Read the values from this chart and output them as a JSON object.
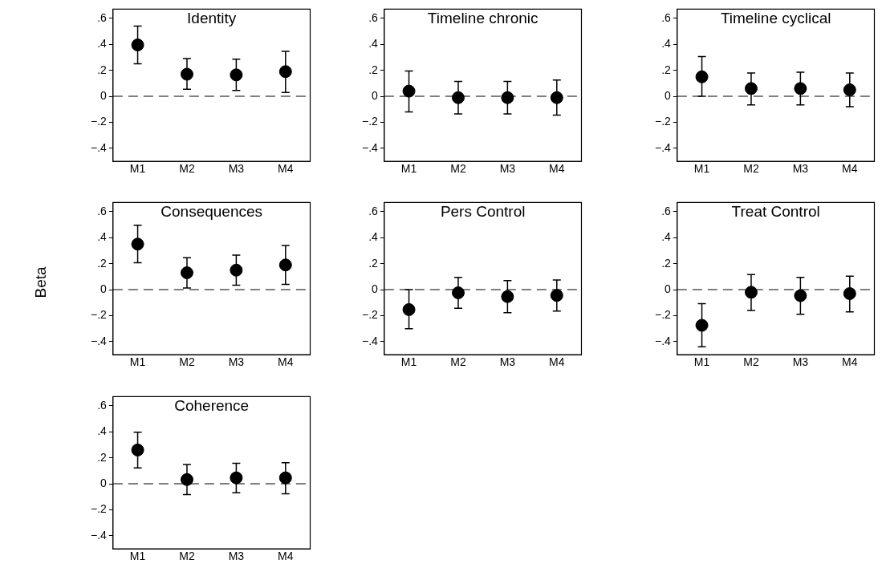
{
  "chart_data": [
    {
      "type": "scatter",
      "title": "Identity",
      "categories": [
        "M1",
        "M2",
        "M3",
        "M4"
      ],
      "series": [
        {
          "color": "#000000",
          "values": [
            0.395,
            0.17,
            0.165,
            0.19
          ],
          "errors": [
            [
              0.25,
              0.54
            ],
            [
              0.055,
              0.29
            ],
            [
              0.045,
              0.285
            ],
            [
              0.03,
              0.345
            ]
          ]
        }
      ],
      "marker": "circle",
      "ylim": [
        -0.5,
        0.67
      ],
      "yticks": [
        {
          "value": 0.6,
          "label": ".6"
        },
        {
          "value": 0.4,
          "label": ".4"
        },
        {
          "value": 0.2,
          "label": ".2"
        },
        {
          "value": 0,
          "label": "0"
        },
        {
          "value": -0.2,
          "label": "−.2"
        },
        {
          "value": -0.4,
          "label": "−.4"
        }
      ],
      "ref_lines": [
        {
          "axis": "y",
          "value": 0,
          "label": null,
          "color": "#555555",
          "line_style": "dashed"
        }
      ],
      "grid": false,
      "legend": false
    },
    {
      "type": "scatter",
      "title": "Timeline chronic",
      "categories": [
        "M1",
        "M2",
        "M3",
        "M4"
      ],
      "series": [
        {
          "color": "#000000",
          "values": [
            0.04,
            -0.01,
            -0.01,
            -0.01
          ],
          "errors": [
            [
              -0.12,
              0.195
            ],
            [
              -0.135,
              0.115
            ],
            [
              -0.135,
              0.115
            ],
            [
              -0.145,
              0.125
            ]
          ]
        }
      ],
      "marker": "circle",
      "ylim": [
        -0.5,
        0.67
      ],
      "yticks": [
        {
          "value": 0.6,
          "label": ".6"
        },
        {
          "value": 0.4,
          "label": ".4"
        },
        {
          "value": 0.2,
          "label": ".2"
        },
        {
          "value": 0,
          "label": "0"
        },
        {
          "value": -0.2,
          "label": "−.2"
        },
        {
          "value": -0.4,
          "label": "−.4"
        }
      ],
      "ref_lines": [
        {
          "axis": "y",
          "value": 0,
          "label": null,
          "color": "#555555",
          "line_style": "dashed"
        }
      ],
      "grid": false,
      "legend": false
    },
    {
      "type": "scatter",
      "title": "Timeline cyclical",
      "categories": [
        "M1",
        "M2",
        "M3",
        "M4"
      ],
      "series": [
        {
          "color": "#000000",
          "values": [
            0.15,
            0.06,
            0.06,
            0.05
          ],
          "errors": [
            [
              0,
              0.305
            ],
            [
              -0.065,
              0.18
            ],
            [
              -0.065,
              0.185
            ],
            [
              -0.08,
              0.18
            ]
          ]
        }
      ],
      "marker": "circle",
      "ylim": [
        -0.5,
        0.67
      ],
      "yticks": [
        {
          "value": 0.6,
          "label": ".6"
        },
        {
          "value": 0.4,
          "label": ".4"
        },
        {
          "value": 0.2,
          "label": ".2"
        },
        {
          "value": 0,
          "label": "0"
        },
        {
          "value": -0.2,
          "label": "−.2"
        },
        {
          "value": -0.4,
          "label": "−.4"
        }
      ],
      "ref_lines": [
        {
          "axis": "y",
          "value": 0,
          "label": null,
          "color": "#555555",
          "line_style": "dashed"
        }
      ],
      "grid": false,
      "legend": false
    },
    {
      "type": "scatter",
      "title": "Consequences",
      "ylabel": "Beta",
      "categories": [
        "M1",
        "M2",
        "M3",
        "M4"
      ],
      "series": [
        {
          "color": "#000000",
          "values": [
            0.35,
            0.13,
            0.15,
            0.19
          ],
          "errors": [
            [
              0.207,
              0.495
            ],
            [
              0.013,
              0.245
            ],
            [
              0.035,
              0.265
            ],
            [
              0.04,
              0.34
            ]
          ]
        }
      ],
      "marker": "circle",
      "ylim": [
        -0.5,
        0.67
      ],
      "yticks": [
        {
          "value": 0.6,
          "label": ".6"
        },
        {
          "value": 0.4,
          "label": ".4"
        },
        {
          "value": 0.2,
          "label": ".2"
        },
        {
          "value": 0,
          "label": "0"
        },
        {
          "value": -0.2,
          "label": "−.2"
        },
        {
          "value": -0.4,
          "label": "−.4"
        }
      ],
      "ref_lines": [
        {
          "axis": "y",
          "value": 0,
          "label": null,
          "color": "#555555",
          "line_style": "dashed"
        }
      ],
      "grid": false,
      "legend": false
    },
    {
      "type": "scatter",
      "title": "Pers Control",
      "categories": [
        "M1",
        "M2",
        "M3",
        "M4"
      ],
      "series": [
        {
          "color": "#000000",
          "values": [
            -0.153,
            -0.024,
            -0.053,
            -0.044
          ],
          "errors": [
            [
              -0.3,
              0
            ],
            [
              -0.143,
              0.094
            ],
            [
              -0.177,
              0.07
            ],
            [
              -0.165,
              0.075
            ]
          ]
        }
      ],
      "marker": "circle",
      "ylim": [
        -0.5,
        0.67
      ],
      "yticks": [
        {
          "value": 0.6,
          "label": ".6"
        },
        {
          "value": 0.4,
          "label": ".4"
        },
        {
          "value": 0.2,
          "label": ".2"
        },
        {
          "value": 0,
          "label": "0"
        },
        {
          "value": -0.2,
          "label": "−.2"
        },
        {
          "value": -0.4,
          "label": "−.4"
        }
      ],
      "ref_lines": [
        {
          "axis": "y",
          "value": 0,
          "label": null,
          "color": "#555555",
          "line_style": "dashed"
        }
      ],
      "grid": false,
      "legend": false
    },
    {
      "type": "scatter",
      "title": "Treat Control",
      "categories": [
        "M1",
        "M2",
        "M3",
        "M4"
      ],
      "series": [
        {
          "color": "#000000",
          "values": [
            -0.274,
            -0.02,
            -0.046,
            -0.03
          ],
          "errors": [
            [
              -0.438,
              -0.107
            ],
            [
              -0.16,
              0.116
            ],
            [
              -0.189,
              0.094
            ],
            [
              -0.17,
              0.104
            ]
          ]
        }
      ],
      "marker": "circle",
      "ylim": [
        -0.5,
        0.67
      ],
      "yticks": [
        {
          "value": 0.6,
          "label": ".6"
        },
        {
          "value": 0.4,
          "label": ".4"
        },
        {
          "value": 0.2,
          "label": ".2"
        },
        {
          "value": 0,
          "label": "0"
        },
        {
          "value": -0.2,
          "label": "−.2"
        },
        {
          "value": -0.4,
          "label": "−.4"
        }
      ],
      "ref_lines": [
        {
          "axis": "y",
          "value": 0,
          "label": null,
          "color": "#555555",
          "line_style": "dashed"
        }
      ],
      "grid": false,
      "legend": false
    },
    {
      "type": "scatter",
      "title": "Coherence",
      "categories": [
        "M1",
        "M2",
        "M3",
        "M4"
      ],
      "series": [
        {
          "color": "#000000",
          "values": [
            0.26,
            0.033,
            0.046,
            0.046
          ],
          "errors": [
            [
              0.123,
              0.397
            ],
            [
              -0.082,
              0.148
            ],
            [
              -0.069,
              0.157
            ],
            [
              -0.077,
              0.163
            ]
          ]
        }
      ],
      "marker": "circle",
      "ylim": [
        -0.5,
        0.67
      ],
      "yticks": [
        {
          "value": 0.6,
          "label": ".6"
        },
        {
          "value": 0.4,
          "label": ".4"
        },
        {
          "value": 0.2,
          "label": ".2"
        },
        {
          "value": 0,
          "label": "0"
        },
        {
          "value": -0.2,
          "label": "−.2"
        },
        {
          "value": -0.4,
          "label": "−.4"
        }
      ],
      "ref_lines": [
        {
          "axis": "y",
          "value": 0,
          "label": null,
          "color": "#555555",
          "line_style": "dashed"
        }
      ],
      "grid": false,
      "legend": false
    }
  ]
}
